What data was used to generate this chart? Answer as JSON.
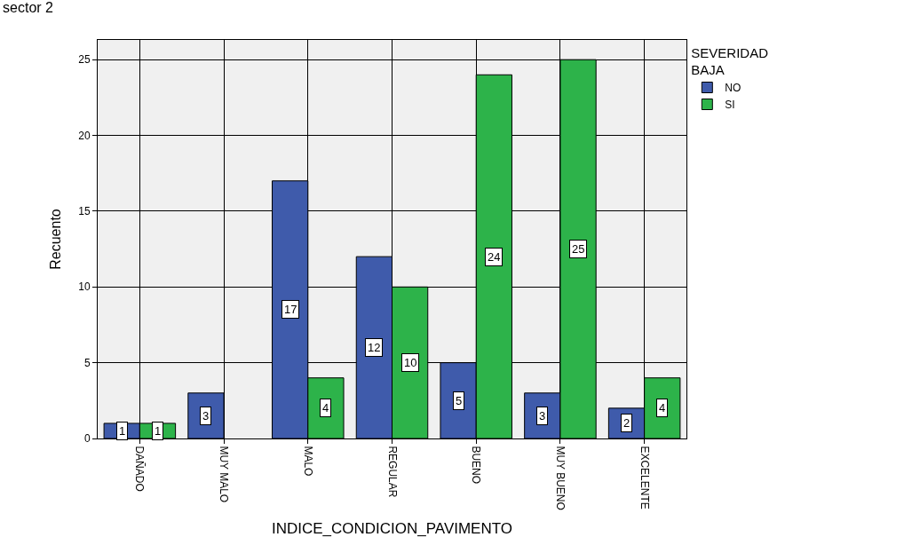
{
  "chart_data": {
    "type": "bar",
    "title": "sector 2",
    "xlabel": "INDICE_CONDICION_PAVIMENTO",
    "ylabel": "Recuento",
    "legend_title": "SEVERIDAD BAJA",
    "categories": [
      "DAÑADO",
      "MUY MALO",
      "MALO",
      "REGULAR",
      "BUENO",
      "MUY BUENO",
      "EXCELENTE"
    ],
    "series": [
      {
        "name": "NO",
        "color": "#3f5bab",
        "values": [
          1,
          3,
          17,
          12,
          5,
          3,
          2
        ]
      },
      {
        "name": "SI",
        "color": "#2db34a",
        "values": [
          1,
          null,
          4,
          10,
          24,
          25,
          4
        ]
      }
    ],
    "ylim": [
      0,
      26.3
    ],
    "yticks": [
      0,
      5,
      10,
      15,
      20,
      25
    ],
    "grid": true,
    "legend": "top right",
    "data_labels": true
  }
}
